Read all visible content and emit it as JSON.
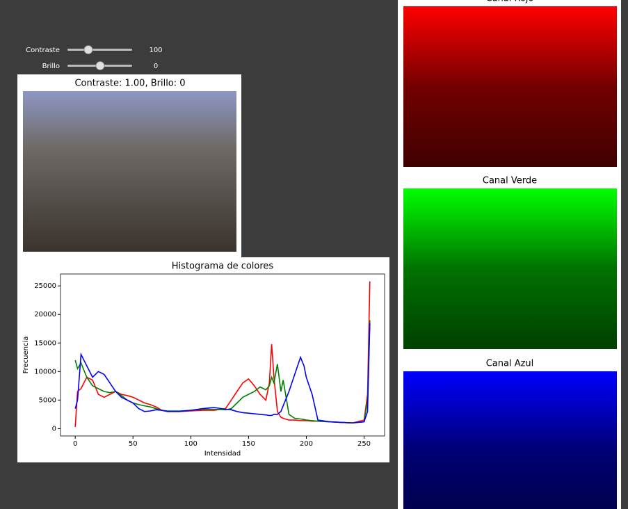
{
  "controls": [
    {
      "label": "Contraste",
      "value": 100
    },
    {
      "label": "Brillo",
      "value": 0
    }
  ],
  "preview": {
    "title": "Contraste: 1.00, Brillo: 0"
  },
  "chart_data": {
    "type": "line",
    "title": "Histograma de colores",
    "xlabel": "Intensidad",
    "ylabel": "Frecuencia",
    "x": [
      0,
      2,
      5,
      10,
      15,
      20,
      25,
      30,
      35,
      40,
      45,
      50,
      55,
      60,
      65,
      70,
      75,
      80,
      90,
      100,
      110,
      120,
      130,
      135,
      140,
      145,
      150,
      155,
      160,
      165,
      168,
      170,
      172,
      175,
      178,
      180,
      185,
      190,
      195,
      198,
      200,
      205,
      210,
      220,
      230,
      240,
      250,
      253,
      255
    ],
    "series": [
      {
        "name": "r",
        "color": "#ff0000",
        "values": [
          300,
          6500,
          7000,
          9000,
          8500,
          6000,
          5500,
          6000,
          6500,
          6000,
          5800,
          5500,
          5000,
          4500,
          4200,
          3800,
          3200,
          3000,
          3000,
          3100,
          3200,
          3200,
          3500,
          5000,
          6500,
          8000,
          8700,
          7500,
          6000,
          5000,
          8000,
          14800,
          9000,
          3000,
          2000,
          1800,
          1500,
          1500,
          1400,
          1400,
          1400,
          1300,
          1300,
          1200,
          1100,
          1000,
          1500,
          6000,
          25800
        ]
      },
      {
        "name": "g",
        "color": "#008000",
        "values": [
          12000,
          10500,
          11500,
          9000,
          7500,
          7000,
          6500,
          6300,
          6500,
          5800,
          5000,
          4500,
          4200,
          4000,
          3800,
          3500,
          3200,
          3100,
          3100,
          3200,
          3400,
          3400,
          3300,
          3500,
          4500,
          5500,
          6000,
          6500,
          7300,
          6800,
          7500,
          9000,
          8000,
          11300,
          6500,
          8500,
          2500,
          1800,
          1700,
          1600,
          1500,
          1400,
          1300,
          1200,
          1100,
          1000,
          1200,
          5000,
          19000
        ]
      },
      {
        "name": "b",
        "color": "#0000ff",
        "values": [
          3500,
          5000,
          13000,
          11000,
          9000,
          10000,
          9500,
          8000,
          6500,
          5500,
          5000,
          4500,
          3500,
          3000,
          3100,
          3300,
          3200,
          3000,
          3000,
          3200,
          3500,
          3700,
          3400,
          3300,
          3000,
          2800,
          2700,
          2600,
          2500,
          2400,
          2300,
          2300,
          2500,
          2500,
          3000,
          4000,
          6500,
          9500,
          12500,
          11000,
          9000,
          6000,
          1500,
          1200,
          1100,
          1000,
          1200,
          3000,
          18500
        ]
      }
    ],
    "xlim": [
      -12.75,
      267.75
    ],
    "ylim": [
      -1290,
      27090
    ],
    "xticks": [
      0,
      50,
      100,
      150,
      200,
      250
    ],
    "yticks": [
      0,
      5000,
      10000,
      15000,
      20000,
      25000
    ]
  },
  "channels": [
    {
      "title": "Canal Rojo",
      "color": "#ff0000"
    },
    {
      "title": "Canal Verde",
      "color": "#00ff00"
    },
    {
      "title": "Canal Azul",
      "color": "#0000ff"
    }
  ]
}
